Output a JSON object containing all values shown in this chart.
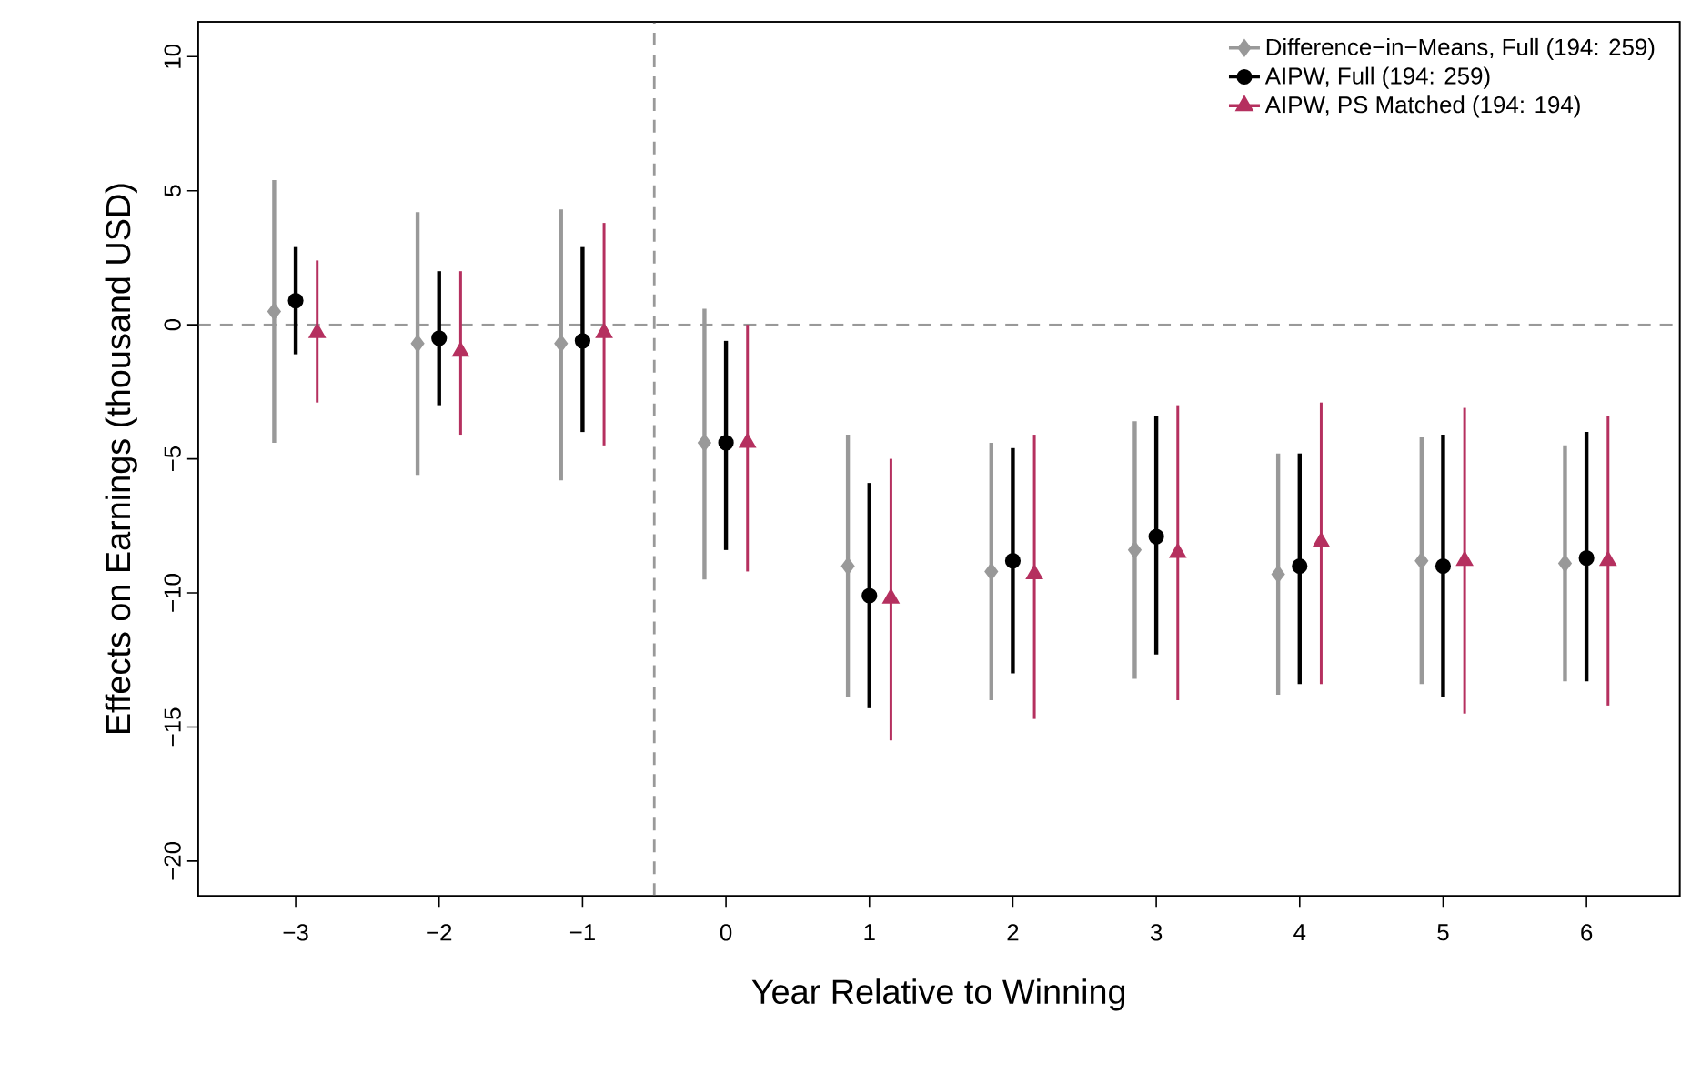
{
  "chart_data": {
    "type": "scatter",
    "xlabel": "Year Relative to Winning",
    "ylabel": "Effects on Earnings (thousand USD)",
    "xlim": [
      -3.68,
      6.65
    ],
    "ylim": [
      -21.3,
      11.3
    ],
    "xticks": [
      {
        "value": -3,
        "label": "−3"
      },
      {
        "value": -2,
        "label": "−2"
      },
      {
        "value": -1,
        "label": "−1"
      },
      0,
      1,
      2,
      3,
      4,
      5,
      6
    ],
    "yticks": [
      {
        "value": -20,
        "label": "−20"
      },
      {
        "value": -15,
        "label": "−15"
      },
      {
        "value": -10,
        "label": "−10"
      },
      {
        "value": -5,
        "label": "−5"
      },
      0,
      5,
      10
    ],
    "legend": "top right",
    "grid": false,
    "ref_lines": [
      {
        "axis": "y",
        "value": 0,
        "color": "#999999",
        "line_style": "dashed"
      },
      {
        "axis": "x",
        "value": -0.5,
        "color": "#999999",
        "line_style": "dashed"
      }
    ],
    "series": [
      {
        "name": "Difference−in−Means, Full (194: 259)",
        "color": "#999999",
        "marker": "diamond",
        "x": [
          -3.15,
          -2.15,
          -1.15,
          -0.15,
          0.85,
          1.85,
          2.85,
          3.85,
          4.85,
          5.85
        ],
        "values": [
          0.5,
          -0.7,
          -0.7,
          -4.4,
          -9.0,
          -9.2,
          -8.4,
          -9.3,
          -8.8,
          -8.9
        ],
        "errors": [
          [
            -4.4,
            5.4
          ],
          [
            -5.6,
            4.2
          ],
          [
            -5.8,
            4.3
          ],
          [
            -9.5,
            0.6
          ],
          [
            -13.9,
            -4.1
          ],
          [
            -14.0,
            -4.4
          ],
          [
            -13.2,
            -3.6
          ],
          [
            -13.8,
            -4.8
          ],
          [
            -13.4,
            -4.2
          ],
          [
            -13.3,
            -4.5
          ]
        ]
      },
      {
        "name": "AIPW, Full (194: 259)",
        "color": "#000000",
        "marker": "circle",
        "x": [
          -3,
          -2,
          -1,
          0,
          1,
          2,
          3,
          4,
          5,
          6
        ],
        "values": [
          0.9,
          -0.5,
          -0.6,
          -4.4,
          -10.1,
          -8.8,
          -7.9,
          -9.0,
          -9.0,
          -8.7
        ],
        "errors": [
          [
            -1.1,
            2.9
          ],
          [
            -3.0,
            2.0
          ],
          [
            -4.0,
            2.9
          ],
          [
            -8.4,
            -0.6
          ],
          [
            -14.3,
            -5.9
          ],
          [
            -13.0,
            -4.6
          ],
          [
            -12.3,
            -3.4
          ],
          [
            -13.4,
            -4.8
          ],
          [
            -13.9,
            -4.1
          ],
          [
            -13.3,
            -4.0
          ]
        ]
      },
      {
        "name": "AIPW, PS Matched (194: 194)",
        "color": "#b5305f",
        "marker": "triangle",
        "x": [
          -2.85,
          -1.85,
          -0.85,
          0.15,
          1.15,
          2.15,
          3.15,
          4.15,
          5.15,
          6.15
        ],
        "values": [
          -0.3,
          -1.0,
          -0.3,
          -4.4,
          -10.2,
          -9.3,
          -8.5,
          -8.1,
          -8.8,
          -8.8
        ],
        "errors": [
          [
            -2.9,
            2.4
          ],
          [
            -4.1,
            2.0
          ],
          [
            -4.5,
            3.8
          ],
          [
            -9.2,
            0.0
          ],
          [
            -15.5,
            -5.0
          ],
          [
            -14.7,
            -4.1
          ],
          [
            -14.0,
            -3.0
          ],
          [
            -13.4,
            -2.9
          ],
          [
            -14.5,
            -3.1
          ],
          [
            -14.2,
            -3.4
          ]
        ]
      }
    ]
  }
}
